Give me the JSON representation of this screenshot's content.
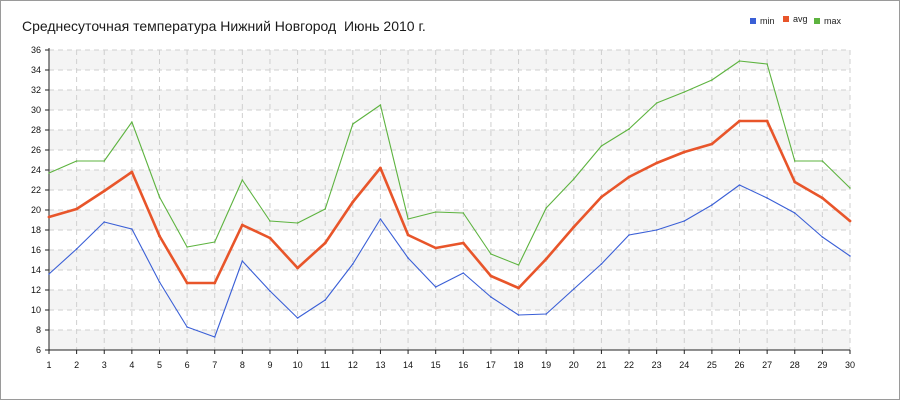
{
  "chart_data": {
    "type": "line",
    "title": "Среднесуточная температура Нижний Новгород  Июнь 2010 г.",
    "xlabel": "",
    "ylabel": "",
    "x": [
      1,
      2,
      3,
      4,
      5,
      6,
      7,
      8,
      9,
      10,
      11,
      12,
      13,
      14,
      15,
      16,
      17,
      18,
      19,
      20,
      21,
      22,
      23,
      24,
      25,
      26,
      27,
      28,
      29,
      30
    ],
    "xlim": [
      1,
      30
    ],
    "ylim": [
      6,
      36
    ],
    "yticks": [
      6,
      8,
      10,
      12,
      14,
      16,
      18,
      20,
      22,
      24,
      26,
      28,
      30,
      32,
      34,
      36
    ],
    "grid": true,
    "legend_position": "top-right",
    "series": [
      {
        "name": "min",
        "color": "#3a5fd6",
        "values": [
          13.6,
          16.1,
          18.8,
          18.1,
          12.8,
          8.3,
          7.3,
          14.9,
          11.9,
          9.2,
          11.0,
          14.6,
          19.1,
          15.2,
          12.3,
          13.7,
          11.3,
          9.5,
          9.6,
          12.1,
          14.6,
          17.5,
          18.0,
          18.9,
          20.5,
          22.5,
          21.2,
          19.7,
          17.3,
          15.4
        ]
      },
      {
        "name": "avg",
        "color": "#e8552a",
        "values": [
          19.3,
          20.1,
          21.9,
          23.8,
          17.4,
          12.7,
          12.7,
          18.5,
          17.2,
          14.2,
          16.7,
          20.8,
          24.2,
          17.5,
          16.2,
          16.7,
          13.4,
          12.2,
          15.1,
          18.3,
          21.3,
          23.3,
          24.7,
          25.8,
          26.6,
          28.9,
          28.9,
          22.8,
          21.2,
          18.9
        ]
      },
      {
        "name": "max",
        "color": "#5db33f",
        "values": [
          23.7,
          24.9,
          24.9,
          28.8,
          21.3,
          16.3,
          16.8,
          23.0,
          18.9,
          18.7,
          20.1,
          28.6,
          30.5,
          19.1,
          19.8,
          19.7,
          15.6,
          14.5,
          20.2,
          23.1,
          26.4,
          28.1,
          30.7,
          31.8,
          33.0,
          34.9,
          34.6,
          24.9,
          24.9,
          22.2
        ]
      }
    ]
  }
}
